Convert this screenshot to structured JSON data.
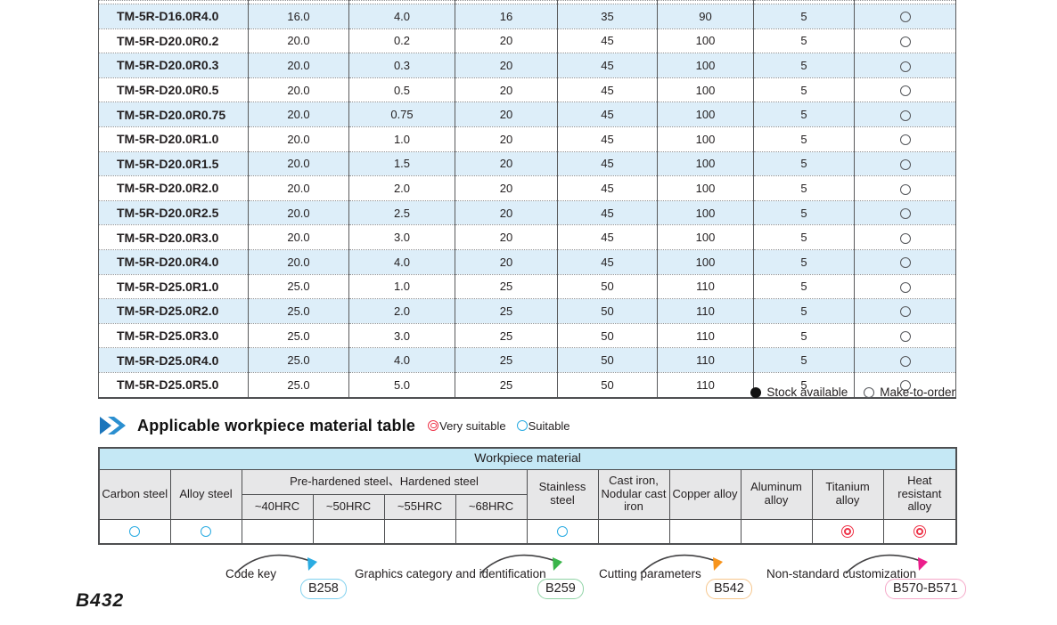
{
  "spec_table": {
    "rows": [
      {
        "model": "TM-5R-D16.0R4.0",
        "values": [
          "16.0",
          "4.0",
          "16",
          "35",
          "90",
          "5"
        ],
        "stock": "make-to-order"
      },
      {
        "model": "TM-5R-D20.0R0.2",
        "values": [
          "20.0",
          "0.2",
          "20",
          "45",
          "100",
          "5"
        ],
        "stock": "make-to-order"
      },
      {
        "model": "TM-5R-D20.0R0.3",
        "values": [
          "20.0",
          "0.3",
          "20",
          "45",
          "100",
          "5"
        ],
        "stock": "make-to-order"
      },
      {
        "model": "TM-5R-D20.0R0.5",
        "values": [
          "20.0",
          "0.5",
          "20",
          "45",
          "100",
          "5"
        ],
        "stock": "make-to-order"
      },
      {
        "model": "TM-5R-D20.0R0.75",
        "values": [
          "20.0",
          "0.75",
          "20",
          "45",
          "100",
          "5"
        ],
        "stock": "make-to-order"
      },
      {
        "model": "TM-5R-D20.0R1.0",
        "values": [
          "20.0",
          "1.0",
          "20",
          "45",
          "100",
          "5"
        ],
        "stock": "make-to-order"
      },
      {
        "model": "TM-5R-D20.0R1.5",
        "values": [
          "20.0",
          "1.5",
          "20",
          "45",
          "100",
          "5"
        ],
        "stock": "make-to-order"
      },
      {
        "model": "TM-5R-D20.0R2.0",
        "values": [
          "20.0",
          "2.0",
          "20",
          "45",
          "100",
          "5"
        ],
        "stock": "make-to-order"
      },
      {
        "model": "TM-5R-D20.0R2.5",
        "values": [
          "20.0",
          "2.5",
          "20",
          "45",
          "100",
          "5"
        ],
        "stock": "make-to-order"
      },
      {
        "model": "TM-5R-D20.0R3.0",
        "values": [
          "20.0",
          "3.0",
          "20",
          "45",
          "100",
          "5"
        ],
        "stock": "make-to-order"
      },
      {
        "model": "TM-5R-D20.0R4.0",
        "values": [
          "20.0",
          "4.0",
          "20",
          "45",
          "100",
          "5"
        ],
        "stock": "make-to-order"
      },
      {
        "model": "TM-5R-D25.0R1.0",
        "values": [
          "25.0",
          "1.0",
          "25",
          "50",
          "110",
          "5"
        ],
        "stock": "make-to-order"
      },
      {
        "model": "TM-5R-D25.0R2.0",
        "values": [
          "25.0",
          "2.0",
          "25",
          "50",
          "110",
          "5"
        ],
        "stock": "make-to-order"
      },
      {
        "model": "TM-5R-D25.0R3.0",
        "values": [
          "25.0",
          "3.0",
          "25",
          "50",
          "110",
          "5"
        ],
        "stock": "make-to-order"
      },
      {
        "model": "TM-5R-D25.0R4.0",
        "values": [
          "25.0",
          "4.0",
          "25",
          "50",
          "110",
          "5"
        ],
        "stock": "make-to-order"
      },
      {
        "model": "TM-5R-D25.0R5.0",
        "values": [
          "25.0",
          "5.0",
          "25",
          "50",
          "110",
          "5"
        ],
        "stock": "make-to-order"
      }
    ],
    "legend": {
      "stock_available": "Stock available",
      "make_to_order": "Make-to-order"
    }
  },
  "material_section": {
    "title": "Applicable workpiece material table",
    "legend": {
      "very_suitable": "Very suitable",
      "suitable": "Suitable"
    },
    "table": {
      "header": "Workpiece material",
      "group_header": "Pre-hardened steel、Hardened steel",
      "columns": [
        "Carbon steel",
        "Alloy steel",
        "Stainless steel",
        "Cast iron, Nodular cast iron",
        "Copper alloy",
        "Aluminum alloy",
        "Titanium alloy",
        "Heat resistant alloy"
      ],
      "hrc": [
        "~40HRC",
        "~50HRC",
        "~55HRC",
        "~68HRC"
      ],
      "ratings": [
        "suitable",
        "suitable",
        "",
        "",
        "",
        "",
        "suitable",
        "",
        "",
        "",
        "very_suitable",
        "very_suitable"
      ]
    }
  },
  "footer": {
    "annotations": [
      {
        "label": "Code key",
        "ref": "B258",
        "box_color": "#7fd0ee",
        "arrow_color": "#2bace2"
      },
      {
        "label": "Graphics category and identification",
        "ref": "B259",
        "box_color": "#8fd3a5",
        "arrow_color": "#3ab54a"
      },
      {
        "label": "Cutting parameters",
        "ref": "B542",
        "box_color": "#f6c68c",
        "arrow_color": "#f7941d"
      },
      {
        "label": "Non-standard customization",
        "ref": "B570-B571",
        "box_color": "#f5a8c8",
        "arrow_color": "#ec1e8c"
      }
    ],
    "page_number": "B432"
  },
  "colors": {
    "row_alt": "#ddeef9",
    "band": "#c5e8f5",
    "header_gray": "#e7e7e8",
    "suitable": "#29abe2",
    "very_suitable": "#ee3348",
    "table_border": "#595a5c"
  }
}
